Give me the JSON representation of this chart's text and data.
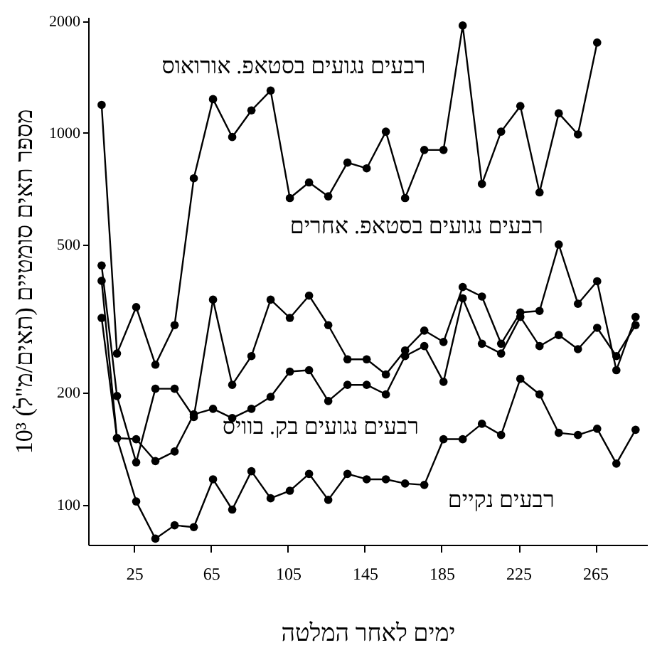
{
  "chart_data": {
    "type": "line",
    "xlabel": "ימים לאחר המלטה",
    "ylabel": "מספר תאים סומטיים (תאים/מ\"ל) 10³",
    "log": "y",
    "xlim": [
      1,
      292
    ],
    "xticks": [
      25,
      65,
      105,
      145,
      185,
      225,
      265
    ],
    "ylim": [
      78,
      2050
    ],
    "yticks": [
      100,
      200,
      500,
      1000,
      2000
    ],
    "grid": false,
    "marker": "circle",
    "line_style": "solid",
    "x": [
      8,
      16,
      26,
      36,
      46,
      56,
      66,
      76,
      86,
      96,
      106,
      116,
      126,
      136,
      146,
      156,
      166,
      176,
      186,
      196,
      206,
      216,
      226,
      236,
      246,
      256,
      266,
      276,
      286
    ],
    "series": [
      {
        "name": "רבעים נגועים בסטאפ. אורואוס",
        "color": "#000000",
        "values": [
          1190,
          255,
          340,
          238,
          304,
          755,
          1233,
          975,
          1150,
          1300,
          668,
          736,
          675,
          832,
          803,
          1008,
          668,
          900,
          900,
          1945,
          729,
          1008,
          1181,
          692,
          1129,
          991,
          1750,
          null,
          null
        ]
      },
      {
        "name": "רבעים נגועים בסטאפ. אחרים",
        "color": "#000000",
        "values": [
          440,
          196,
          130,
          205,
          205,
          172,
          356,
          210,
          251,
          356,
          318,
          365,
          304,
          246,
          246,
          224,
          260,
          294,
          274,
          385,
          363,
          271,
          329,
          332,
          501,
          347,
          399,
          230,
          320
        ]
      },
      {
        "name": "רבעים נגועים בק. בוויס",
        "color": "#000000",
        "values": [
          400,
          151,
          150,
          131,
          139,
          175,
          181,
          171,
          181,
          195,
          228,
          230,
          190,
          210,
          210,
          198,
          251,
          267,
          214,
          359,
          271,
          255,
          320,
          267,
          286,
          262,
          299,
          251,
          304
        ]
      },
      {
        "name": "רבעים נקיים",
        "color": "#000000",
        "values": [
          318,
          151,
          102,
          81,
          88,
          87,
          117,
          97,
          123,
          104,
          109,
          121,
          103,
          121,
          117,
          117,
          114,
          113,
          150,
          150,
          165,
          154,
          218,
          198,
          156,
          154,
          160,
          129,
          159
        ]
      }
    ]
  }
}
